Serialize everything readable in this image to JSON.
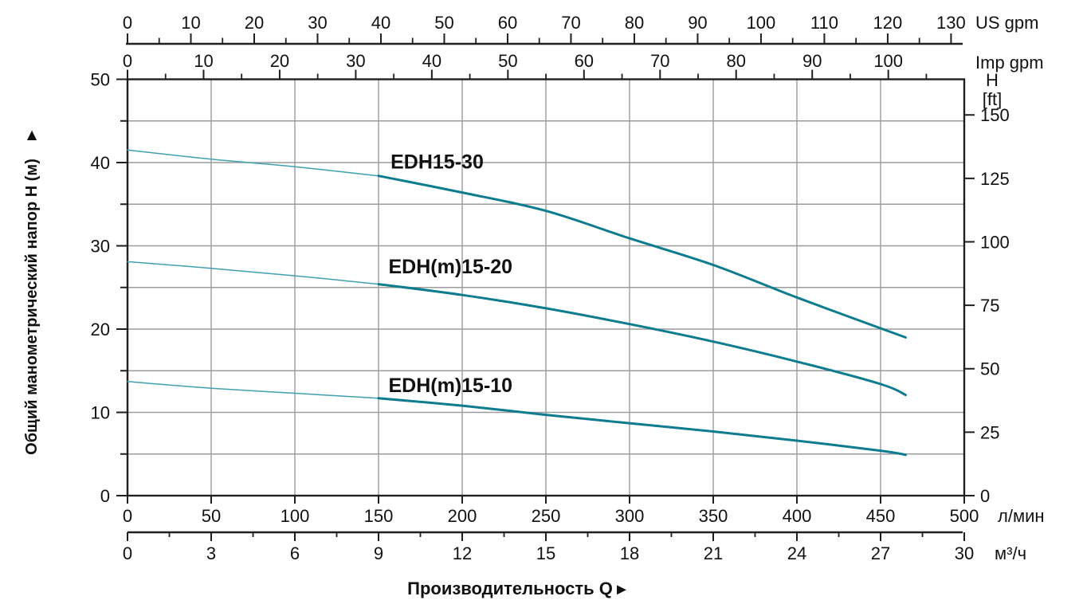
{
  "chart_data": {
    "type": "line",
    "description": "Pump performance curves: total manometric head H versus capacity Q",
    "series": [
      {
        "name": "EDH15-30",
        "label": "EDH15-30",
        "label_anchor": {
          "q": 185,
          "h": 39.3
        },
        "points": [
          [
            0,
            41.5
          ],
          [
            50,
            40.4
          ],
          [
            100,
            39.5
          ],
          [
            150,
            38.4
          ],
          [
            200,
            36.4
          ],
          [
            250,
            34.2
          ],
          [
            300,
            30.9
          ],
          [
            350,
            27.7
          ],
          [
            400,
            23.8
          ],
          [
            450,
            20.1
          ],
          [
            465,
            19.0
          ]
        ]
      },
      {
        "name": "EDH(m)15-20",
        "label": "EDH(m)15-20",
        "label_anchor": {
          "q": 193,
          "h": 26.7
        },
        "points": [
          [
            0,
            28.1
          ],
          [
            50,
            27.3
          ],
          [
            100,
            26.4
          ],
          [
            150,
            25.4
          ],
          [
            200,
            24.1
          ],
          [
            250,
            22.5
          ],
          [
            300,
            20.6
          ],
          [
            350,
            18.5
          ],
          [
            400,
            16.1
          ],
          [
            450,
            13.4
          ],
          [
            465,
            12.1
          ]
        ]
      },
      {
        "name": "EDH(m)15-10",
        "label": "EDH(m)15-10",
        "label_anchor": {
          "q": 193,
          "h": 12.45
        },
        "points": [
          [
            0,
            13.7
          ],
          [
            50,
            12.9
          ],
          [
            100,
            12.3
          ],
          [
            150,
            11.7
          ],
          [
            200,
            10.8
          ],
          [
            250,
            9.7
          ],
          [
            300,
            8.7
          ],
          [
            350,
            7.7
          ],
          [
            400,
            6.6
          ],
          [
            450,
            5.4
          ],
          [
            465,
            4.9
          ]
        ]
      }
    ],
    "style_split_q": 150,
    "axes": {
      "x_lmin": {
        "unit": "л/мин",
        "min": 0,
        "max": 500,
        "ticks": [
          0,
          50,
          100,
          150,
          200,
          250,
          300,
          350,
          400,
          450,
          500
        ]
      },
      "x_m3h": {
        "unit": "м³/ч",
        "min": 0,
        "max": 30,
        "major_ticks": [
          0,
          3,
          6,
          9,
          12,
          15,
          18,
          21,
          24,
          27,
          30
        ],
        "minor_step": 1.5
      },
      "x_usgpm": {
        "unit": "US gpm",
        "min": 0,
        "max": 130,
        "major_ticks": [
          0,
          10,
          20,
          30,
          40,
          50,
          60,
          70,
          80,
          90,
          100,
          110,
          120,
          130
        ],
        "minor_step": 5,
        "lmin_per_unit": 3.7854
      },
      "x_impgpm": {
        "unit": "Imp gpm",
        "min": 0,
        "max": 105,
        "major_ticks": [
          0,
          10,
          20,
          30,
          40,
          50,
          60,
          70,
          80,
          90,
          100
        ],
        "minor_step": 5,
        "lmin_per_unit": 4.5461
      },
      "y_m": {
        "title": "Общий манометрический напор H (м)",
        "arrow": "▲",
        "min": 0,
        "max": 50,
        "major_ticks": [
          0,
          10,
          20,
          30,
          40,
          50
        ],
        "minor_step": 5
      },
      "y_ft": {
        "unit_lines": [
          "H",
          "[ft]"
        ],
        "ticks": [
          0,
          25,
          50,
          75,
          100,
          125,
          150
        ],
        "m_per_unit": 0.3048
      }
    },
    "x_title": {
      "label": "Производительность Q",
      "arrow": "►"
    },
    "colors": {
      "curve": "#0e7c8f",
      "curve_light": "#3fa0ae",
      "grid": "#9b9b9b",
      "axis": "#1f1f1f",
      "text": "#111111"
    }
  }
}
